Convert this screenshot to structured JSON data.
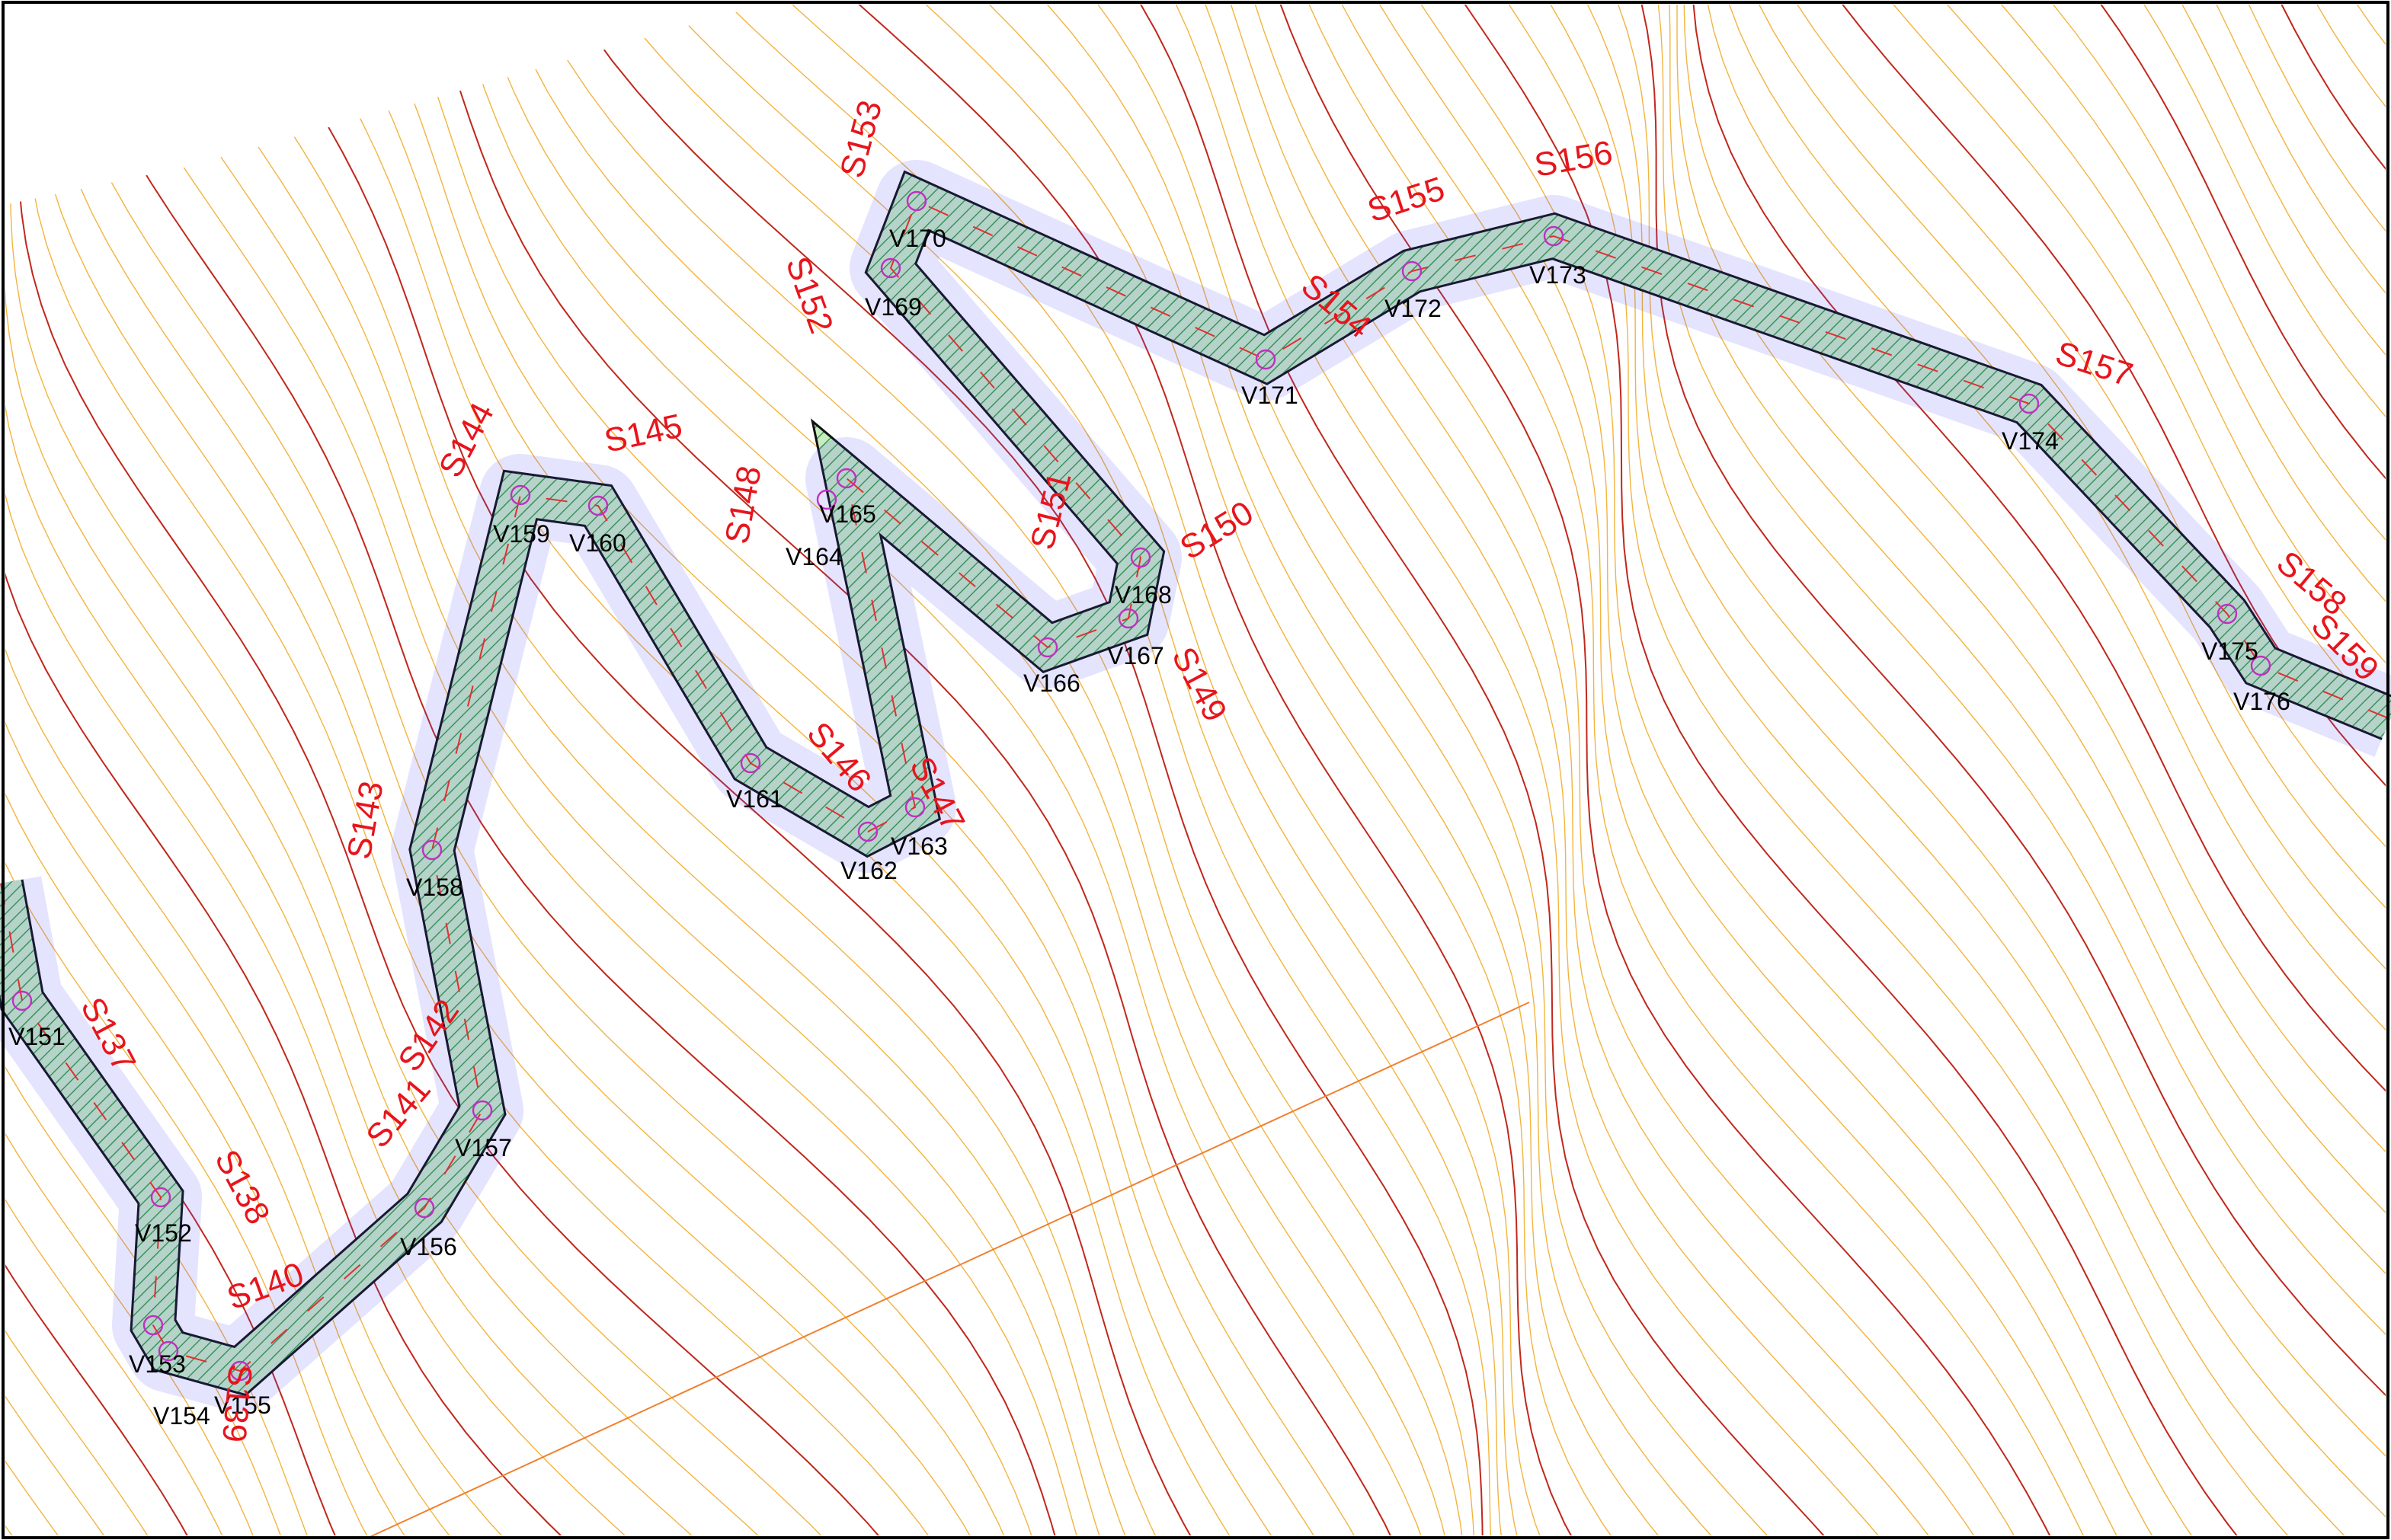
{
  "stations": [
    "S137",
    "S138",
    "S139",
    "S140",
    "S141",
    "S142",
    "S143",
    "S144",
    "S145",
    "S146",
    "S147",
    "S148",
    "S149",
    "S150",
    "S151",
    "S152",
    "S153",
    "S154",
    "S155",
    "S156",
    "S157",
    "S158",
    "S159"
  ],
  "vertices": [
    "V151",
    "V152",
    "V153",
    "V154",
    "V155",
    "V156",
    "V157",
    "V158",
    "V159",
    "V160",
    "V161",
    "V162",
    "V163",
    "V164",
    "V165",
    "V166",
    "V167",
    "V168",
    "V169",
    "V170",
    "V171",
    "V172",
    "V173",
    "V174",
    "V175",
    "V176"
  ]
}
